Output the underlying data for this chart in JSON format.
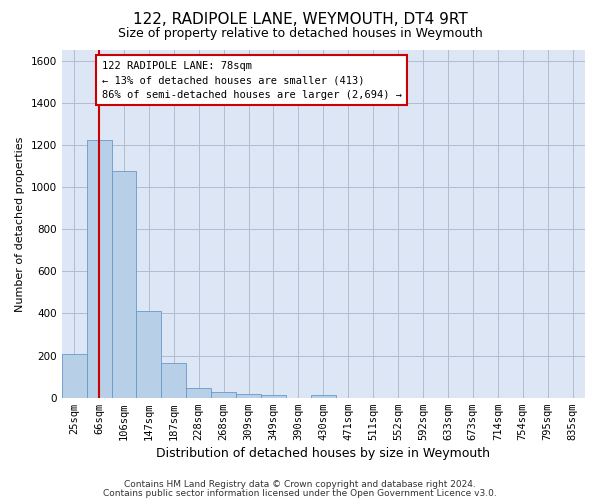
{
  "title": "122, RADIPOLE LANE, WEYMOUTH, DT4 9RT",
  "subtitle": "Size of property relative to detached houses in Weymouth",
  "xlabel": "Distribution of detached houses by size in Weymouth",
  "ylabel": "Number of detached properties",
  "categories": [
    "25sqm",
    "66sqm",
    "106sqm",
    "147sqm",
    "187sqm",
    "228sqm",
    "268sqm",
    "309sqm",
    "349sqm",
    "390sqm",
    "430sqm",
    "471sqm",
    "511sqm",
    "552sqm",
    "592sqm",
    "633sqm",
    "673sqm",
    "714sqm",
    "754sqm",
    "795sqm",
    "835sqm"
  ],
  "values": [
    205,
    1225,
    1075,
    410,
    165,
    45,
    27,
    17,
    15,
    0,
    15,
    0,
    0,
    0,
    0,
    0,
    0,
    0,
    0,
    0,
    0
  ],
  "bar_color": "#b8cfe8",
  "bar_edge_color": "#6699cc",
  "vline_x": 1.0,
  "vline_color": "#cc0000",
  "annotation_text": "122 RADIPOLE LANE: 78sqm\n← 13% of detached houses are smaller (413)\n86% of semi-detached houses are larger (2,694) →",
  "annotation_box_color": "#ffffff",
  "annotation_box_edge": "#cc0000",
  "ylim": [
    0,
    1650
  ],
  "yticks": [
    0,
    200,
    400,
    600,
    800,
    1000,
    1200,
    1400,
    1600
  ],
  "footer1": "Contains HM Land Registry data © Crown copyright and database right 2024.",
  "footer2": "Contains public sector information licensed under the Open Government Licence v3.0.",
  "plot_bg_color": "#dce6f5",
  "fig_bg_color": "#ffffff",
  "grid_color": "#b0bcd0",
  "title_fontsize": 11,
  "subtitle_fontsize": 9,
  "ylabel_fontsize": 8,
  "xlabel_fontsize": 9,
  "tick_fontsize": 7.5,
  "footer_fontsize": 6.5
}
